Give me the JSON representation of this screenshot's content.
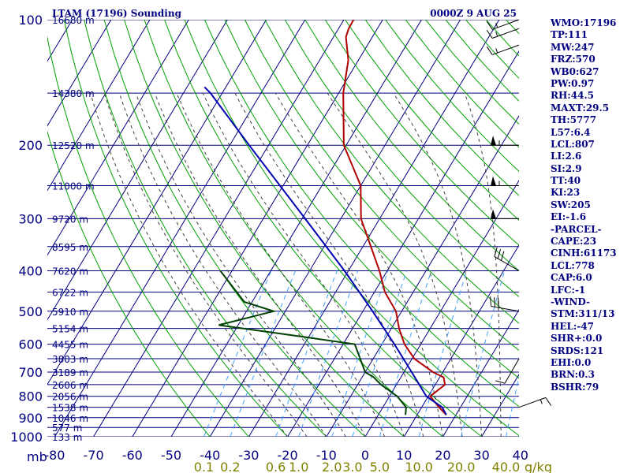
{
  "header": {
    "station": "LTAM (17196) Sounding",
    "time": "0000Z  9 AUG 25"
  },
  "indices": [
    "WMO:17196",
    "TP:111",
    "MW:247",
    "FRZ:570",
    "WB0:627",
    "PW:0.97",
    "RH:44.5",
    "MAXT:29.5",
    "TH:5777",
    "L57:6.4",
    "LCL:807",
    "LI:2.6",
    "SI:2.9",
    "TT:40",
    "KI:23",
    "SW:205",
    "EI:-1.6",
    "-PARCEL-",
    "CAPE:23",
    "CINH:61173",
    "LCL:778",
    "CAP:6.0",
    "LFC:-1",
    "-WIND-",
    "STM:311/13",
    "HEL:-47",
    "SHR+:0.0",
    "SRDS:121",
    "EHI:0.0",
    "BRN:0.3",
    "BSHR:79"
  ],
  "colors": {
    "grid": "#000080",
    "dry_adiabat": "#00a000",
    "moist_adiabat": "#404040",
    "mixing_ratio": "#40a0ff",
    "temperature": "#b00000",
    "dewpoint": "#004000",
    "parcel": "#0000b0",
    "wind": "#000000"
  },
  "chart_data": {
    "type": "skew-t log-p",
    "title": "LTAM (17196) Sounding",
    "time": "0000Z  9 AUG 25",
    "pressure_unit": "mb",
    "pressure_levels": [
      100,
      200,
      300,
      400,
      500,
      600,
      700,
      800,
      900,
      1000
    ],
    "pressure_range": [
      1000,
      100
    ],
    "temperature_ticks": [
      -80,
      -70,
      -60,
      -50,
      -40,
      -30,
      -20,
      -10,
      0,
      10,
      20,
      30,
      40
    ],
    "mixing_ratio_labels": [
      "0.1",
      "0.2",
      "0.6",
      "1.0",
      "2.0",
      "3.0",
      "5.0",
      "10.0",
      "20.0",
      "40.0"
    ],
    "mixing_ratio_unit": "g/kg",
    "height_labels": [
      {
        "p": 100,
        "label": "16680 m"
      },
      {
        "p": 150,
        "label": "14380 m"
      },
      {
        "p": 200,
        "label": "12520 m"
      },
      {
        "p": 250,
        "label": "11000 m"
      },
      {
        "p": 300,
        "label": "9720 m"
      },
      {
        "p": 350,
        "label": "8595 m"
      },
      {
        "p": 400,
        "label": "7620 m"
      },
      {
        "p": 450,
        "label": "6722 m"
      },
      {
        "p": 500,
        "label": "5910 m"
      },
      {
        "p": 550,
        "label": "5154 m"
      },
      {
        "p": 600,
        "label": "4455 m"
      },
      {
        "p": 650,
        "label": "3803 m"
      },
      {
        "p": 700,
        "label": "3189 m"
      },
      {
        "p": 750,
        "label": "2606 m"
      },
      {
        "p": 800,
        "label": "2056 m"
      },
      {
        "p": 850,
        "label": "1538 m"
      },
      {
        "p": 900,
        "label": "1046 m"
      },
      {
        "p": 950,
        "label": "577 m"
      },
      {
        "p": 1000,
        "label": "133 m"
      }
    ],
    "series": [
      {
        "name": "temperature",
        "points": [
          {
            "p": 886,
            "t": 17.5
          },
          {
            "p": 850,
            "t": 14.5
          },
          {
            "p": 800,
            "t": 10.5
          },
          {
            "p": 750,
            "t": 12.5
          },
          {
            "p": 720,
            "t": 11.0
          },
          {
            "p": 700,
            "t": 7.5
          },
          {
            "p": 650,
            "t": 0.6
          },
          {
            "p": 600,
            "t": -4.2
          },
          {
            "p": 550,
            "t": -8.0
          },
          {
            "p": 500,
            "t": -11.5
          },
          {
            "p": 450,
            "t": -17.3
          },
          {
            "p": 400,
            "t": -22.0
          },
          {
            "p": 300,
            "t": -34.8
          },
          {
            "p": 250,
            "t": -40.0
          },
          {
            "p": 200,
            "t": -50.6
          },
          {
            "p": 150,
            "t": -58.8
          },
          {
            "p": 125,
            "t": -62.6
          },
          {
            "p": 110,
            "t": -66.8
          },
          {
            "p": 105,
            "t": -67.4
          },
          {
            "p": 100,
            "t": -67.5
          }
        ]
      },
      {
        "name": "dewpoint",
        "points": [
          {
            "p": 886,
            "t": 7.0
          },
          {
            "p": 850,
            "t": 6.0
          },
          {
            "p": 800,
            "t": 2.0
          },
          {
            "p": 750,
            "t": -4.0
          },
          {
            "p": 720,
            "t": -7.0
          },
          {
            "p": 700,
            "t": -10.0
          },
          {
            "p": 600,
            "t": -17.0
          },
          {
            "p": 575,
            "t": -32.0
          },
          {
            "p": 540,
            "t": -55.0
          },
          {
            "p": 500,
            "t": -43.0
          },
          {
            "p": 475,
            "t": -52.0
          },
          {
            "p": 400,
            "t": -63.0
          }
        ]
      },
      {
        "name": "parcel",
        "points": [
          {
            "p": 886,
            "t": 17.5
          },
          {
            "p": 850,
            "t": 15.3
          },
          {
            "p": 800,
            "t": 9.5
          },
          {
            "p": 700,
            "t": 2.0
          },
          {
            "p": 600,
            "t": -6.8
          },
          {
            "p": 500,
            "t": -17.5
          },
          {
            "p": 400,
            "t": -31.0
          },
          {
            "p": 300,
            "t": -49.2
          },
          {
            "p": 200,
            "t": -75.0
          },
          {
            "p": 150,
            "t": -93.0
          },
          {
            "p": 145,
            "t": -95.5
          }
        ]
      }
    ],
    "wind_barbs": [
      {
        "p": 100,
        "dir": 250,
        "kt": 15
      },
      {
        "p": 105,
        "dir": 250,
        "kt": 15
      },
      {
        "p": 115,
        "dir": 250,
        "kt": 15
      },
      {
        "p": 200,
        "dir": 270,
        "kt": 55
      },
      {
        "p": 250,
        "dir": 270,
        "kt": 55
      },
      {
        "p": 300,
        "dir": 270,
        "kt": 50
      },
      {
        "p": 400,
        "dir": 300,
        "kt": 30
      },
      {
        "p": 500,
        "dir": 280,
        "kt": 30
      },
      {
        "p": 650,
        "dir": 210,
        "kt": 10
      },
      {
        "p": 850,
        "dir": 70,
        "kt": 15
      }
    ]
  }
}
